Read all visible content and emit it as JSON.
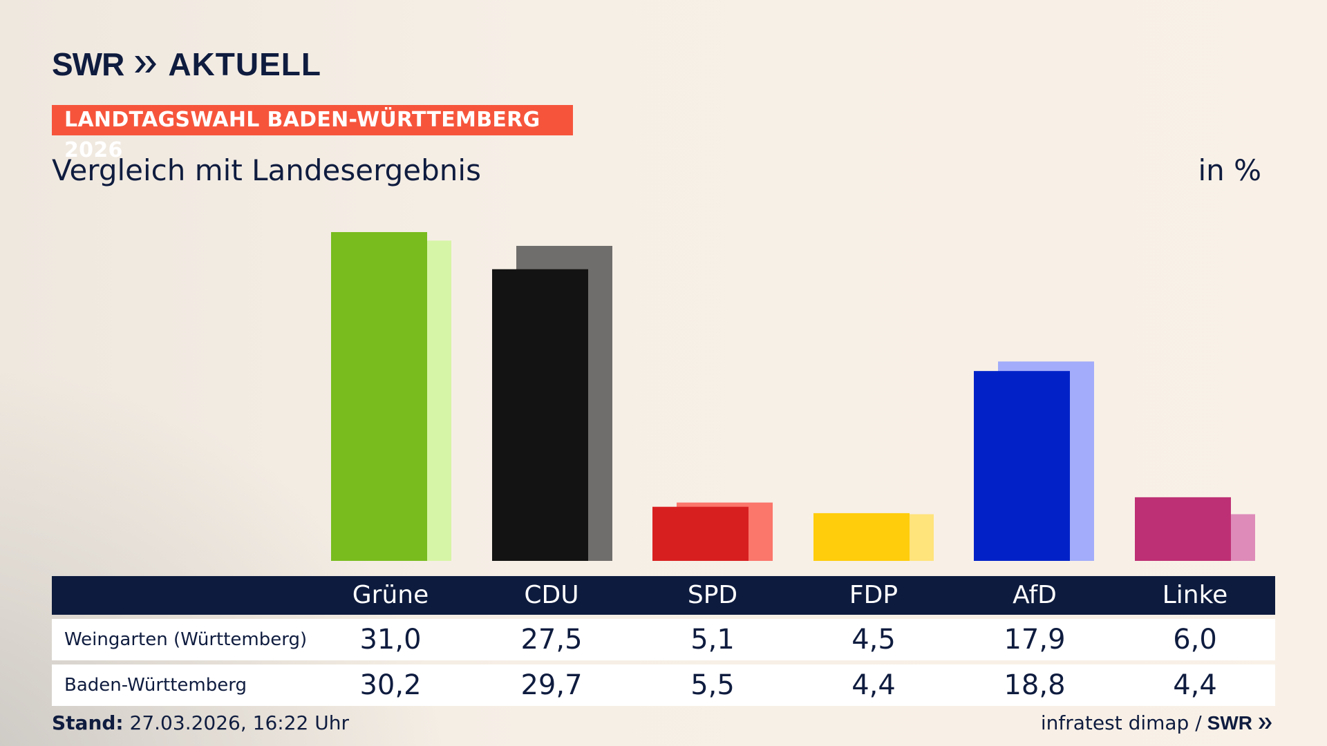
{
  "header": {
    "logo_text": "SWR",
    "logo_suffix": "AKTUELL",
    "badge": "LANDTAGSWAHL BADEN-WÜRTTEMBERG 2026",
    "subtitle": "Vergleich mit Landesergebnis",
    "unit": "in %"
  },
  "footer": {
    "stand_label": "Stand:",
    "stand_value": "27.03.2026, 16:22 Uhr",
    "source": "infratest dimap /",
    "source_logo": "SWR"
  },
  "chart_data": {
    "type": "bar",
    "categories": [
      "Grüne",
      "CDU",
      "SPD",
      "FDP",
      "AfD",
      "Linke"
    ],
    "series": [
      {
        "name": "Weingarten (Württemberg)",
        "values": [
          31.0,
          27.5,
          5.1,
          4.5,
          17.9,
          6.0
        ],
        "labels": [
          "31,0",
          "27,5",
          "5,1",
          "4,5",
          "17,9",
          "6,0"
        ]
      },
      {
        "name": "Baden-Württemberg",
        "values": [
          30.2,
          29.7,
          5.5,
          4.4,
          18.8,
          4.4
        ],
        "labels": [
          "30,2",
          "29,7",
          "5,5",
          "4,4",
          "18,8",
          "4,4"
        ]
      }
    ],
    "colors": [
      "#78bc1e",
      "#131313",
      "#d81f20",
      "#ffcd0b",
      "#0222c8",
      "#be3075"
    ],
    "colors_light": [
      "#d7f5a6",
      "#706e6c",
      "#fb766b",
      "#ffe37b",
      "#a2acfa",
      "#de8bb9"
    ],
    "ylim": [
      0,
      31.0
    ]
  }
}
